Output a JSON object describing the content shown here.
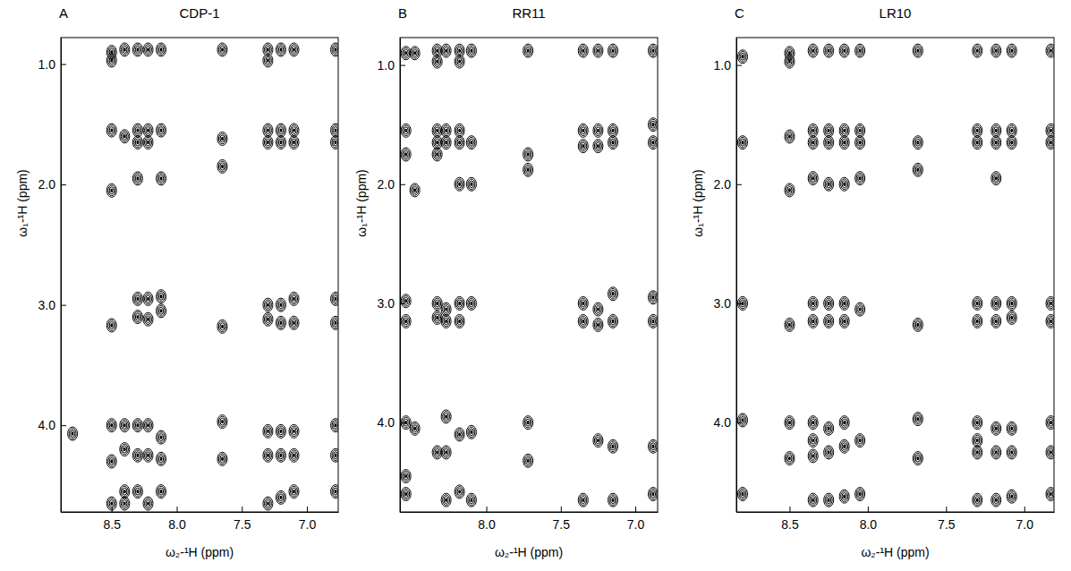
{
  "chart_data": [
    {
      "type": "scatter",
      "panel_label": "A",
      "title": "CDP-1",
      "x_label": "ω₂-¹H (ppm)",
      "y_label": "ω₁-¹H (ppm)",
      "marker": "contour",
      "color": "#000000",
      "xlim": [
        8.89,
        6.76
      ],
      "ylim": [
        0.78,
        4.72
      ],
      "xticks": [
        8.5,
        {
          "value": 8,
          "label": "8.0"
        },
        7.5,
        {
          "value": 7,
          "label": "7.0"
        }
      ],
      "yticks": [
        {
          "value": 1,
          "label": "1.0"
        },
        {
          "value": 2,
          "label": "2.0"
        },
        {
          "value": 3,
          "label": "3.0"
        },
        {
          "value": 4,
          "label": "4.0"
        }
      ],
      "x": [
        8.5,
        8.5,
        8.5,
        8.5,
        8.5,
        8.5,
        8.5,
        8.5,
        8.4,
        8.4,
        8.4,
        8.4,
        8.4,
        8.4,
        8.3,
        8.3,
        8.3,
        8.3,
        8.3,
        8.3,
        8.3,
        8.3,
        8.3,
        8.22,
        8.22,
        8.22,
        8.22,
        8.22,
        8.22,
        8.22,
        8.22,
        8.12,
        8.12,
        8.12,
        8.12,
        8.12,
        8.12,
        8.12,
        8.12,
        7.65,
        7.65,
        7.65,
        7.65,
        7.65,
        7.65,
        7.3,
        7.3,
        7.3,
        7.3,
        7.3,
        7.3,
        7.3,
        7.3,
        7.3,
        7.2,
        7.2,
        7.2,
        7.2,
        7.2,
        7.2,
        7.2,
        7.2,
        7.1,
        7.1,
        7.1,
        7.1,
        7.1,
        7.1,
        7.1,
        7.1,
        6.78,
        6.78,
        6.78,
        6.78,
        6.78,
        6.78,
        6.78,
        6.78,
        8.8
      ],
      "values": [
        0.9,
        0.97,
        1.55,
        2.05,
        3.17,
        4.0,
        4.3,
        4.65,
        0.88,
        1.6,
        4.0,
        4.2,
        4.55,
        4.65,
        0.88,
        1.55,
        1.65,
        1.95,
        2.95,
        3.1,
        4.0,
        4.25,
        4.55,
        0.88,
        1.55,
        1.65,
        2.95,
        3.12,
        4.0,
        4.25,
        4.65,
        0.88,
        1.55,
        1.95,
        2.93,
        3.05,
        4.1,
        4.28,
        4.55,
        0.88,
        1.62,
        1.85,
        3.18,
        3.97,
        4.28,
        0.88,
        0.97,
        1.55,
        1.65,
        3.0,
        3.12,
        4.05,
        4.25,
        4.65,
        0.88,
        1.55,
        1.65,
        3.0,
        3.15,
        4.05,
        4.25,
        4.6,
        0.88,
        1.55,
        1.65,
        2.95,
        3.15,
        4.05,
        4.25,
        4.55,
        0.88,
        1.55,
        1.65,
        2.95,
        3.15,
        4.0,
        4.25,
        4.55,
        4.07
      ]
    },
    {
      "type": "scatter",
      "panel_label": "B",
      "title": "RR11",
      "x_label": "ω₂-¹H (ppm)",
      "y_label": "ω₁-¹H (ppm)",
      "marker": "contour",
      "color": "#000000",
      "xlim": [
        8.58,
        6.85
      ],
      "ylim": [
        0.77,
        4.75
      ],
      "xticks": [
        {
          "value": 8,
          "label": "8.0"
        },
        7.5,
        {
          "value": 7,
          "label": "7.0"
        }
      ],
      "yticks": [
        {
          "value": 1,
          "label": "1.0"
        },
        {
          "value": 2,
          "label": "2.0"
        },
        {
          "value": 3,
          "label": "3.0"
        },
        {
          "value": 4,
          "label": "4.0"
        }
      ],
      "x": [
        8.54,
        8.54,
        8.54,
        8.54,
        8.54,
        8.54,
        8.54,
        8.54,
        8.48,
        8.48,
        8.48,
        8.33,
        8.33,
        8.33,
        8.33,
        8.33,
        8.33,
        8.33,
        8.33,
        8.27,
        8.27,
        8.27,
        8.27,
        8.27,
        8.27,
        8.27,
        8.27,
        8.18,
        8.18,
        8.18,
        8.18,
        8.18,
        8.18,
        8.18,
        8.18,
        8.18,
        8.1,
        8.1,
        8.1,
        8.1,
        8.1,
        8.1,
        7.72,
        7.72,
        7.72,
        7.72,
        7.72,
        7.35,
        7.35,
        7.35,
        7.35,
        7.35,
        7.35,
        7.25,
        7.25,
        7.25,
        7.25,
        7.25,
        7.25,
        7.15,
        7.15,
        7.15,
        7.15,
        7.15,
        7.15,
        7.15,
        6.88,
        6.88,
        6.88,
        6.88,
        6.88,
        6.88,
        6.88
      ],
      "values": [
        0.9,
        1.55,
        1.75,
        2.98,
        3.15,
        4.0,
        4.45,
        4.6,
        0.9,
        2.05,
        4.05,
        0.88,
        0.97,
        1.55,
        1.65,
        1.75,
        3.0,
        3.12,
        4.25,
        0.88,
        1.55,
        1.65,
        3.05,
        3.15,
        3.95,
        4.25,
        4.65,
        0.88,
        0.97,
        1.55,
        1.65,
        2.0,
        3.0,
        3.15,
        4.1,
        4.58,
        0.88,
        1.65,
        2.0,
        3.0,
        4.08,
        4.65,
        0.88,
        1.75,
        1.88,
        4.0,
        4.32,
        0.88,
        1.55,
        1.68,
        3.0,
        3.15,
        4.65,
        0.88,
        1.55,
        1.68,
        3.05,
        3.18,
        4.15,
        0.88,
        1.55,
        1.65,
        2.92,
        3.15,
        4.2,
        4.65,
        0.88,
        1.5,
        1.65,
        2.95,
        3.15,
        4.2,
        4.6
      ]
    },
    {
      "type": "scatter",
      "panel_label": "C",
      "title": "LR10",
      "x_label": "ω₂-¹H (ppm)",
      "y_label": "ω₁-¹H (ppm)",
      "marker": "contour",
      "color": "#000000",
      "xlim": [
        8.84,
        6.81
      ],
      "ylim": [
        0.77,
        4.75
      ],
      "xticks": [
        8.5,
        {
          "value": 8,
          "label": "8.0"
        },
        7.5,
        {
          "value": 7,
          "label": "7.0"
        }
      ],
      "yticks": [
        {
          "value": 1,
          "label": "1.0"
        },
        {
          "value": 2,
          "label": "2.0"
        },
        {
          "value": 3,
          "label": "3.0"
        },
        {
          "value": 4,
          "label": "4.0"
        }
      ],
      "x": [
        8.8,
        8.8,
        8.8,
        8.8,
        8.8,
        8.5,
        8.5,
        8.5,
        8.5,
        8.5,
        8.5,
        8.5,
        8.35,
        8.35,
        8.35,
        8.35,
        8.35,
        8.35,
        8.35,
        8.35,
        8.35,
        8.35,
        8.25,
        8.25,
        8.25,
        8.25,
        8.25,
        8.25,
        8.25,
        8.25,
        8.25,
        8.15,
        8.15,
        8.15,
        8.15,
        8.15,
        8.15,
        8.15,
        8.15,
        8.15,
        8.05,
        8.05,
        8.05,
        8.05,
        8.05,
        8.05,
        8.05,
        7.68,
        7.68,
        7.68,
        7.68,
        7.68,
        7.68,
        7.3,
        7.3,
        7.3,
        7.3,
        7.3,
        7.3,
        7.3,
        7.3,
        7.3,
        7.18,
        7.18,
        7.18,
        7.18,
        7.18,
        7.18,
        7.18,
        7.18,
        7.18,
        7.08,
        7.08,
        7.08,
        7.08,
        7.08,
        7.08,
        7.08,
        7.08,
        6.83,
        6.83,
        6.83,
        6.83,
        6.83,
        6.83,
        6.83,
        6.83
      ],
      "values": [
        0.93,
        1.65,
        3.0,
        3.98,
        4.6,
        0.9,
        0.97,
        1.6,
        2.05,
        3.18,
        4.0,
        4.3,
        0.88,
        1.55,
        1.65,
        1.95,
        3.0,
        3.15,
        4.0,
        4.15,
        4.28,
        4.65,
        0.88,
        1.55,
        1.65,
        2.0,
        3.0,
        3.15,
        4.05,
        4.25,
        4.65,
        0.88,
        1.55,
        1.65,
        2.0,
        3.0,
        3.15,
        4.0,
        4.2,
        4.62,
        0.88,
        1.55,
        1.65,
        1.95,
        3.05,
        4.15,
        4.6,
        0.88,
        1.65,
        1.88,
        3.18,
        3.97,
        4.3,
        0.88,
        1.55,
        1.65,
        3.0,
        3.15,
        4.0,
        4.15,
        4.25,
        4.65,
        0.88,
        1.55,
        1.65,
        1.95,
        3.0,
        3.15,
        4.05,
        4.25,
        4.65,
        0.88,
        1.55,
        1.65,
        3.0,
        3.12,
        4.05,
        4.25,
        4.62,
        0.88,
        1.55,
        1.65,
        3.0,
        3.15,
        4.0,
        4.25,
        4.6
      ]
    }
  ]
}
